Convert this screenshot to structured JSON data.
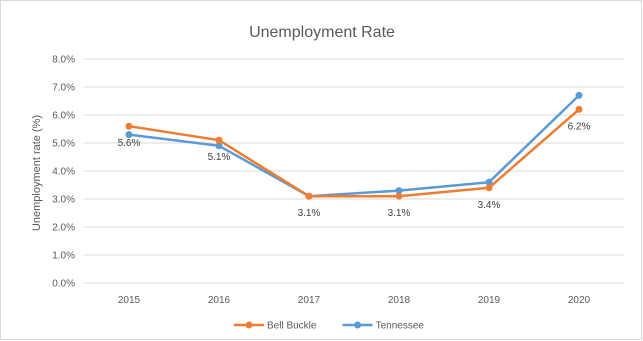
{
  "chart_data": {
    "type": "line",
    "title": "Unemployment Rate",
    "xlabel": "",
    "ylabel": "Unemployment rate (%)",
    "categories": [
      "2015",
      "2016",
      "2017",
      "2018",
      "2019",
      "2020"
    ],
    "ylim": [
      0,
      8
    ],
    "yticks": [
      "0.0%",
      "1.0%",
      "2.0%",
      "3.0%",
      "4.0%",
      "5.0%",
      "6.0%",
      "7.0%",
      "8.0%"
    ],
    "grid": true,
    "legend_position": "bottom",
    "series": [
      {
        "name": "Bell Buckle",
        "color": "#ED7D31",
        "values": [
          5.6,
          5.1,
          3.1,
          3.1,
          3.4,
          6.2
        ],
        "data_labels": [
          "5.6%",
          "5.1%",
          "3.1%",
          "3.1%",
          "3.4%",
          "6.2%"
        ]
      },
      {
        "name": "Tennessee",
        "color": "#5B9BD5",
        "values": [
          5.3,
          4.9,
          3.1,
          3.3,
          3.6,
          6.7
        ]
      }
    ]
  }
}
